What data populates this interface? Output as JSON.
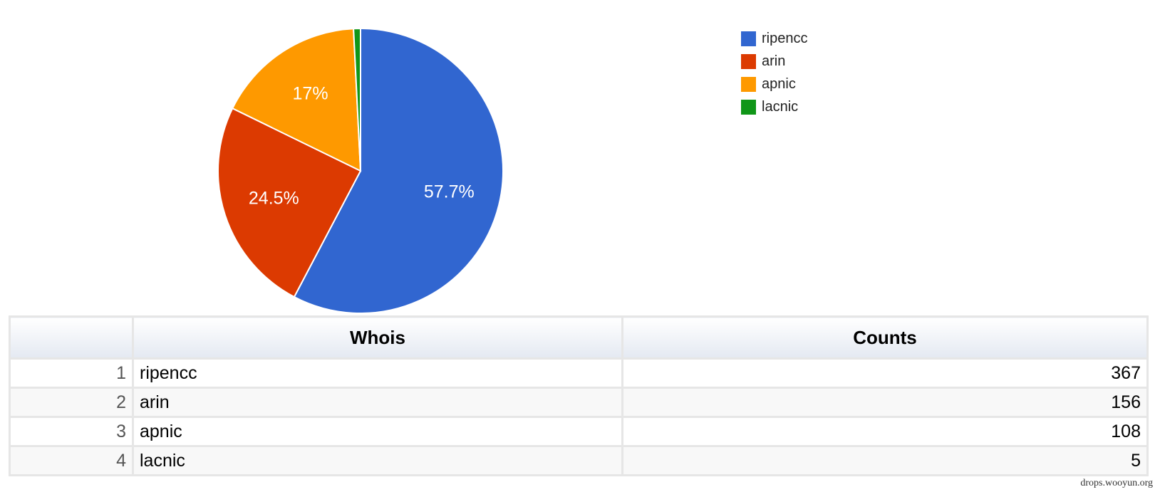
{
  "chart_data": {
    "type": "pie",
    "slices": [
      {
        "label": "ripencc",
        "value": 367,
        "percent_label": "57.7%",
        "color": "#3166d0"
      },
      {
        "label": "arin",
        "value": 156,
        "percent_label": "24.5%",
        "color": "#dc3a01"
      },
      {
        "label": "apnic",
        "value": 108,
        "percent_label": "17%",
        "color": "#fe9900"
      },
      {
        "label": "lacnic",
        "value": 5,
        "percent_label": "",
        "color": "#109618"
      }
    ],
    "legend_position": "top-right"
  },
  "table": {
    "headers": {
      "index": "",
      "whois": "Whois",
      "counts": "Counts"
    },
    "rows": [
      {
        "index": "1",
        "whois": "ripencc",
        "counts": "367"
      },
      {
        "index": "2",
        "whois": "arin",
        "counts": "156"
      },
      {
        "index": "3",
        "whois": "apnic",
        "counts": "108"
      },
      {
        "index": "4",
        "whois": "lacnic",
        "counts": "5"
      }
    ]
  },
  "watermark": "drops.wooyun.org"
}
